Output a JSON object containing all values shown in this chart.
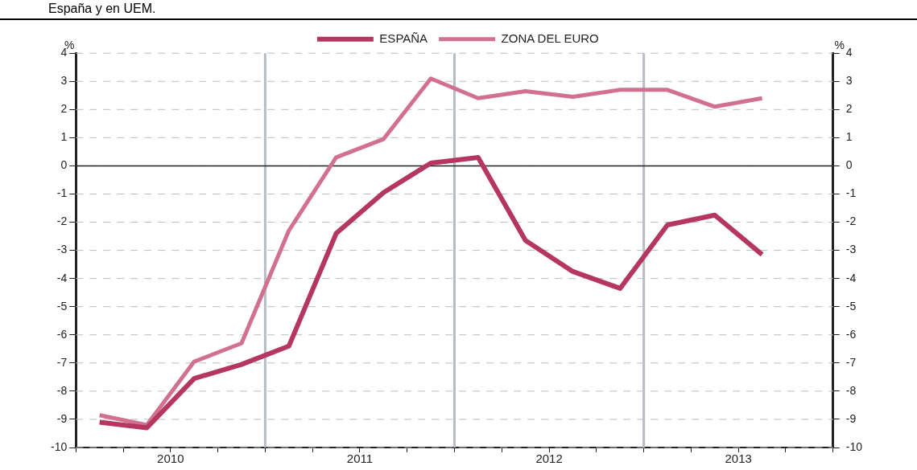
{
  "chart_data": {
    "type": "line",
    "title": "España y en UEM.",
    "ylabel": "%",
    "y2label": "%",
    "x": [
      2010.125,
      2010.375,
      2010.625,
      2010.875,
      2011.125,
      2011.375,
      2011.625,
      2011.875,
      2012.125,
      2012.375,
      2012.625,
      2012.875,
      2013.125,
      2013.375,
      2013.625
    ],
    "series": [
      {
        "name": "ESPAÑA",
        "color": "#b5365e",
        "values": [
          -9.1,
          -9.3,
          -7.55,
          -7.05,
          -6.4,
          -2.4,
          -0.95,
          0.1,
          0.3,
          -2.65,
          -3.75,
          -4.35,
          -2.1,
          -1.75,
          -3.15
        ]
      },
      {
        "name": "ZONA DEL EURO",
        "color": "#d2708f",
        "values": [
          -8.85,
          -9.2,
          -6.95,
          -6.3,
          -2.3,
          0.3,
          0.95,
          3.1,
          2.4,
          2.65,
          2.45,
          2.7,
          2.7,
          2.1,
          2.4
        ]
      }
    ],
    "xlim": [
      2010,
      2014
    ],
    "xticks": [
      {
        "value": 2010,
        "label": null
      },
      {
        "value": 2010.25,
        "label": null
      },
      {
        "value": 2010.5,
        "label": "2010"
      },
      {
        "value": 2010.75,
        "label": null
      },
      {
        "value": 2011,
        "label": null
      },
      {
        "value": 2011.25,
        "label": null
      },
      {
        "value": 2011.5,
        "label": "2011"
      },
      {
        "value": 2011.75,
        "label": null
      },
      {
        "value": 2012,
        "label": null
      },
      {
        "value": 2012.25,
        "label": null
      },
      {
        "value": 2012.5,
        "label": "2012"
      },
      {
        "value": 2012.75,
        "label": null
      },
      {
        "value": 2013,
        "label": null
      },
      {
        "value": 2013.25,
        "label": null
      },
      {
        "value": 2013.5,
        "label": "2013"
      },
      {
        "value": 2013.75,
        "label": null
      },
      {
        "value": 2014,
        "label": null
      }
    ],
    "ylim": [
      -10,
      4
    ],
    "yticks": [
      -10,
      -9,
      -8,
      -7,
      -6,
      -5,
      -4,
      -3,
      -2,
      -1,
      0,
      1,
      2,
      3,
      4
    ],
    "y2lim": [
      -10,
      4
    ],
    "y2ticks": [
      -10,
      -9,
      -8,
      -7,
      -6,
      -5,
      -4,
      -3,
      -2,
      -1,
      0,
      1,
      2,
      3,
      4
    ],
    "ref_lines": [
      {
        "axis": "x",
        "value": 2011,
        "color": "#b8bcc4"
      },
      {
        "axis": "x",
        "value": 2012,
        "color": "#b8bcc4"
      },
      {
        "axis": "x",
        "value": 2013,
        "color": "#b8bcc4"
      },
      {
        "axis": "y",
        "value": 0,
        "color": "#222222"
      }
    ],
    "grid": "y",
    "legend": "top",
    "marker": "none",
    "line_style": "solid"
  }
}
